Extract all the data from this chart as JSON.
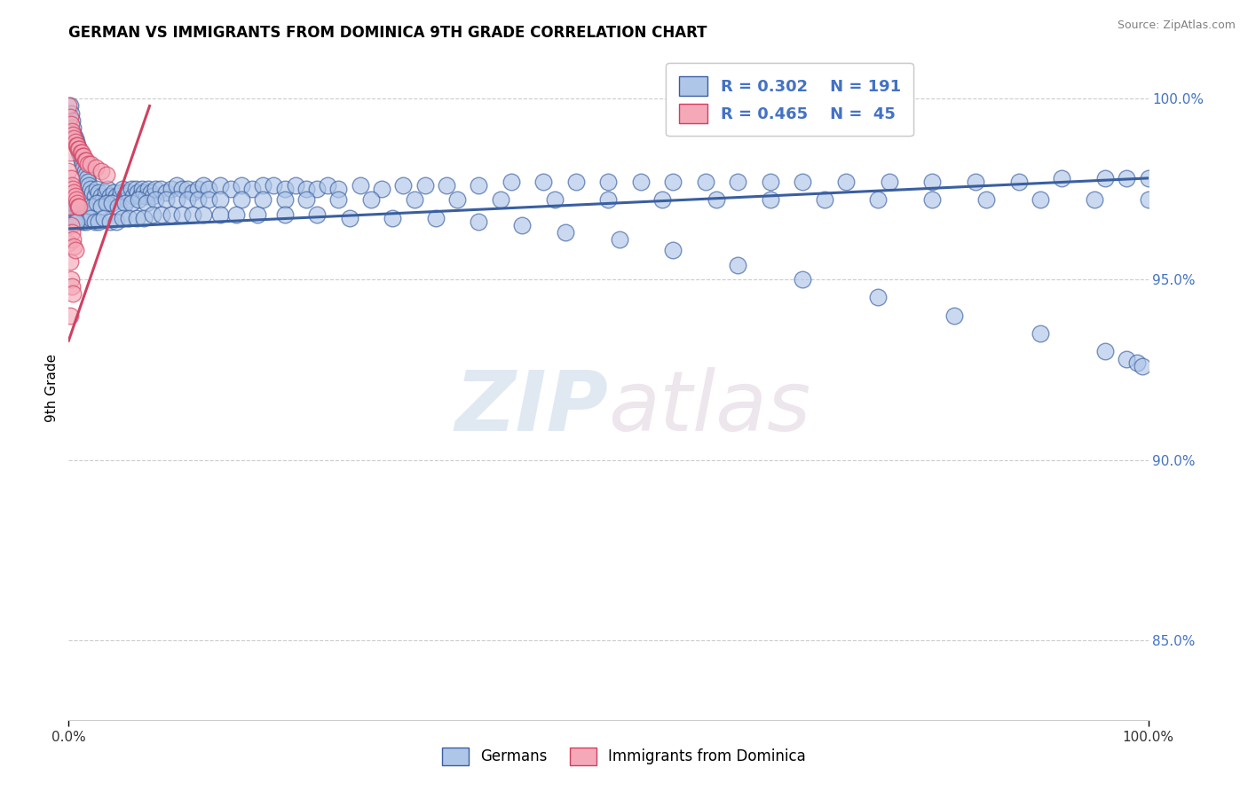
{
  "title": "GERMAN VS IMMIGRANTS FROM DOMINICA 9TH GRADE CORRELATION CHART",
  "source": "Source: ZipAtlas.com",
  "ylabel": "9th Grade",
  "legend_label_blue": "Germans",
  "legend_label_pink": "Immigrants from Dominica",
  "blue_color": "#aec6e8",
  "pink_color": "#f4a8b8",
  "blue_line_color": "#3a5fa0",
  "pink_line_color": "#d04060",
  "legend_text_color": "#4472c4",
  "watermark_zip": "ZIP",
  "watermark_atlas": "atlas",
  "R_blue": 0.302,
  "N_blue": 191,
  "R_pink": 0.465,
  "N_pink": 45,
  "blue_trend_x0": 0.0,
  "blue_trend_x1": 1.0,
  "blue_trend_y0": 0.964,
  "blue_trend_y1": 0.978,
  "pink_trend_x0": 0.0,
  "pink_trend_x1": 0.075,
  "pink_trend_y0": 0.933,
  "pink_trend_y1": 0.998,
  "xlim": [
    0.0,
    1.0
  ],
  "ylim": [
    0.828,
    1.012
  ],
  "yticks": [
    0.85,
    0.9,
    0.95,
    1.0
  ],
  "ytick_labels": [
    "85.0%",
    "90.0%",
    "95.0%",
    "100.0%"
  ],
  "blue_x": [
    0.001,
    0.002,
    0.003,
    0.004,
    0.005,
    0.006,
    0.007,
    0.008,
    0.009,
    0.01,
    0.011,
    0.012,
    0.013,
    0.014,
    0.015,
    0.016,
    0.017,
    0.018,
    0.019,
    0.02,
    0.022,
    0.024,
    0.026,
    0.028,
    0.03,
    0.032,
    0.034,
    0.036,
    0.038,
    0.04,
    0.042,
    0.044,
    0.046,
    0.048,
    0.05,
    0.052,
    0.054,
    0.056,
    0.058,
    0.06,
    0.062,
    0.064,
    0.066,
    0.068,
    0.07,
    0.072,
    0.074,
    0.076,
    0.078,
    0.08,
    0.085,
    0.09,
    0.095,
    0.1,
    0.105,
    0.11,
    0.115,
    0.12,
    0.125,
    0.13,
    0.14,
    0.15,
    0.16,
    0.17,
    0.18,
    0.19,
    0.2,
    0.21,
    0.22,
    0.23,
    0.24,
    0.25,
    0.27,
    0.29,
    0.31,
    0.33,
    0.35,
    0.38,
    0.41,
    0.44,
    0.47,
    0.5,
    0.53,
    0.56,
    0.59,
    0.62,
    0.65,
    0.68,
    0.72,
    0.76,
    0.8,
    0.84,
    0.88,
    0.92,
    0.96,
    0.98,
    1.0,
    0.003,
    0.005,
    0.007,
    0.009,
    0.012,
    0.015,
    0.018,
    0.022,
    0.026,
    0.03,
    0.035,
    0.04,
    0.046,
    0.052,
    0.058,
    0.065,
    0.072,
    0.08,
    0.09,
    0.1,
    0.11,
    0.12,
    0.13,
    0.14,
    0.16,
    0.18,
    0.2,
    0.22,
    0.25,
    0.28,
    0.32,
    0.36,
    0.4,
    0.45,
    0.5,
    0.55,
    0.6,
    0.65,
    0.7,
    0.75,
    0.8,
    0.85,
    0.9,
    0.95,
    1.0,
    0.004,
    0.006,
    0.008,
    0.01,
    0.013,
    0.016,
    0.02,
    0.024,
    0.028,
    0.033,
    0.038,
    0.044,
    0.05,
    0.056,
    0.063,
    0.07,
    0.078,
    0.086,
    0.095,
    0.105,
    0.115,
    0.125,
    0.14,
    0.155,
    0.175,
    0.2,
    0.23,
    0.26,
    0.3,
    0.34,
    0.38,
    0.42,
    0.46,
    0.51,
    0.56,
    0.62,
    0.68,
    0.75,
    0.82,
    0.9,
    0.96,
    0.98,
    0.99,
    0.995,
    0.002,
    0.003,
    0.004,
    0.005,
    0.006,
    0.007
  ],
  "blue_y": [
    0.998,
    0.996,
    0.994,
    0.992,
    0.99,
    0.989,
    0.988,
    0.987,
    0.986,
    0.985,
    0.984,
    0.983,
    0.982,
    0.981,
    0.98,
    0.979,
    0.978,
    0.977,
    0.976,
    0.975,
    0.974,
    0.973,
    0.975,
    0.974,
    0.973,
    0.972,
    0.974,
    0.975,
    0.973,
    0.972,
    0.974,
    0.973,
    0.972,
    0.974,
    0.975,
    0.973,
    0.972,
    0.974,
    0.975,
    0.973,
    0.975,
    0.974,
    0.973,
    0.975,
    0.974,
    0.973,
    0.975,
    0.974,
    0.973,
    0.975,
    0.975,
    0.974,
    0.975,
    0.976,
    0.975,
    0.975,
    0.974,
    0.975,
    0.976,
    0.975,
    0.976,
    0.975,
    0.976,
    0.975,
    0.976,
    0.976,
    0.975,
    0.976,
    0.975,
    0.975,
    0.976,
    0.975,
    0.976,
    0.975,
    0.976,
    0.976,
    0.976,
    0.976,
    0.977,
    0.977,
    0.977,
    0.977,
    0.977,
    0.977,
    0.977,
    0.977,
    0.977,
    0.977,
    0.977,
    0.977,
    0.977,
    0.977,
    0.977,
    0.978,
    0.978,
    0.978,
    0.978,
    0.97,
    0.969,
    0.97,
    0.969,
    0.969,
    0.97,
    0.969,
    0.97,
    0.971,
    0.97,
    0.971,
    0.971,
    0.97,
    0.971,
    0.971,
    0.972,
    0.971,
    0.972,
    0.972,
    0.972,
    0.972,
    0.972,
    0.972,
    0.972,
    0.972,
    0.972,
    0.972,
    0.972,
    0.972,
    0.972,
    0.972,
    0.972,
    0.972,
    0.972,
    0.972,
    0.972,
    0.972,
    0.972,
    0.972,
    0.972,
    0.972,
    0.972,
    0.972,
    0.972,
    0.972,
    0.967,
    0.966,
    0.966,
    0.967,
    0.966,
    0.966,
    0.967,
    0.966,
    0.966,
    0.967,
    0.966,
    0.966,
    0.967,
    0.967,
    0.967,
    0.967,
    0.968,
    0.968,
    0.968,
    0.968,
    0.968,
    0.968,
    0.968,
    0.968,
    0.968,
    0.968,
    0.968,
    0.967,
    0.967,
    0.967,
    0.966,
    0.965,
    0.963,
    0.961,
    0.958,
    0.954,
    0.95,
    0.945,
    0.94,
    0.935,
    0.93,
    0.928,
    0.927,
    0.926,
    0.966,
    0.966,
    0.966,
    0.966,
    0.966,
    0.966
  ],
  "pink_x": [
    0.0,
    0.0,
    0.0,
    0.001,
    0.001,
    0.001,
    0.001,
    0.001,
    0.002,
    0.002,
    0.002,
    0.002,
    0.003,
    0.003,
    0.003,
    0.003,
    0.004,
    0.004,
    0.004,
    0.004,
    0.005,
    0.005,
    0.005,
    0.006,
    0.006,
    0.006,
    0.007,
    0.007,
    0.008,
    0.008,
    0.009,
    0.009,
    0.01,
    0.01,
    0.011,
    0.012,
    0.013,
    0.014,
    0.015,
    0.016,
    0.018,
    0.02,
    0.025,
    0.03,
    0.035
  ],
  "pink_y": [
    0.998,
    0.98,
    0.96,
    0.995,
    0.985,
    0.97,
    0.955,
    0.94,
    0.993,
    0.978,
    0.965,
    0.95,
    0.991,
    0.976,
    0.963,
    0.948,
    0.99,
    0.975,
    0.961,
    0.946,
    0.989,
    0.974,
    0.959,
    0.988,
    0.973,
    0.958,
    0.987,
    0.972,
    0.987,
    0.971,
    0.986,
    0.97,
    0.986,
    0.97,
    0.985,
    0.985,
    0.984,
    0.984,
    0.983,
    0.983,
    0.982,
    0.982,
    0.981,
    0.98,
    0.979
  ]
}
